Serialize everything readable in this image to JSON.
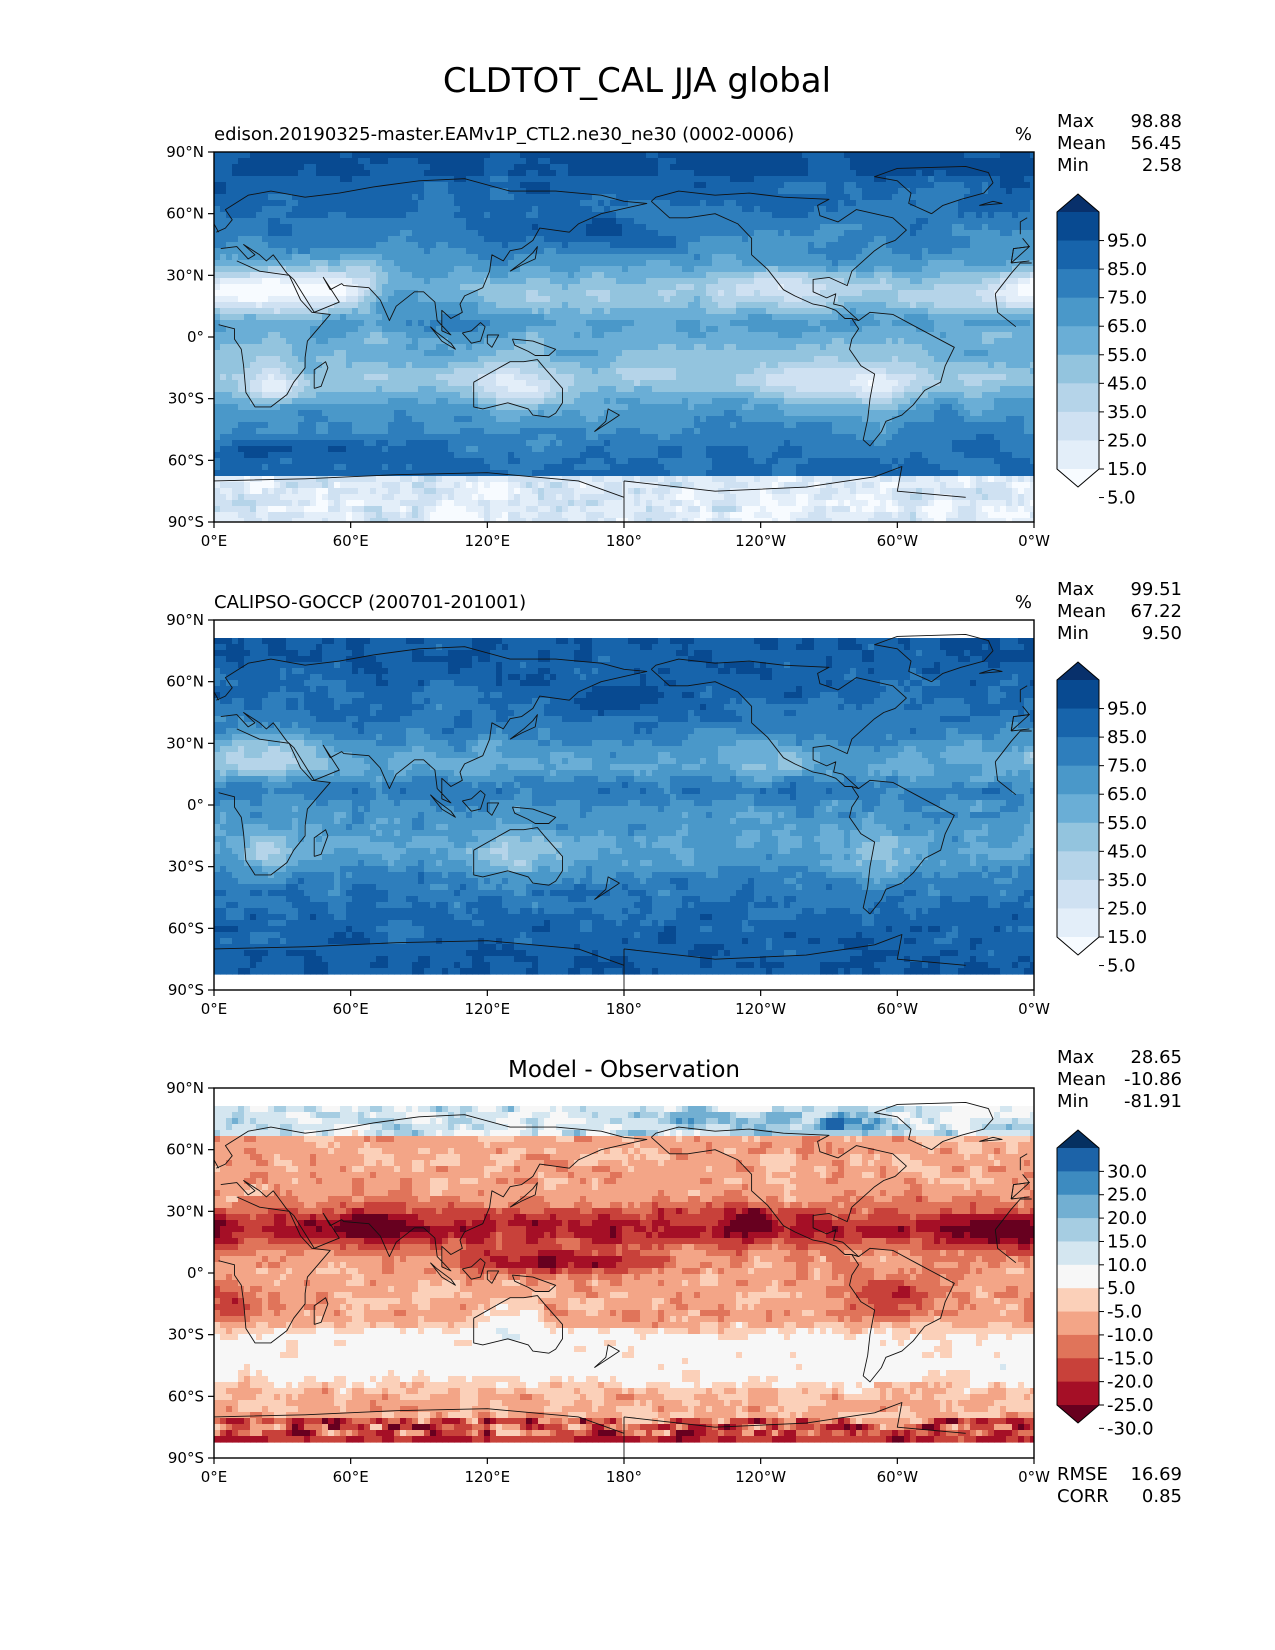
{
  "figure_title": "CLDTOT_CAL JJA global",
  "chart_data": [
    {
      "type": "heatmap",
      "title": "edison.20190325-master.EAMv1P_CTL2.ne30_ne30 (0002-0006)",
      "units": "%",
      "xlabel": "",
      "ylabel": "",
      "x_ticks": [
        "0°E",
        "60°E",
        "120°E",
        "180°",
        "120°W",
        "60°W",
        "0°W"
      ],
      "y_ticks": [
        "90°N",
        "60°N",
        "30°N",
        "0°",
        "30°S",
        "60°S",
        "90°S"
      ],
      "xlim": [
        0,
        360
      ],
      "ylim": [
        -90,
        90
      ],
      "stats": [
        {
          "label": "Max",
          "value": "98.88"
        },
        {
          "label": "Mean",
          "value": "56.45"
        },
        {
          "label": "Min",
          "value": "2.58"
        }
      ],
      "colorbar": {
        "levels": [
          0,
          10,
          20,
          30,
          40,
          50,
          60,
          70,
          80,
          90,
          100
        ],
        "tick_labels": [
          "95.0",
          "85.0",
          "75.0",
          "65.0",
          "55.0",
          "45.0",
          "35.0",
          "25.0",
          "15.0",
          "5.0"
        ],
        "colors": [
          "#f7fbff",
          "#e3eef9",
          "#cfe1f2",
          "#b5d4e9",
          "#93c4de",
          "#6aaed6",
          "#4a98c9",
          "#2e7ebc",
          "#1764ab",
          "#084a91",
          "#08306b"
        ]
      },
      "colormap": "Blues",
      "layout": "zonal_bands_high_latitudes_dark"
    },
    {
      "type": "heatmap",
      "title": "CALIPSO-GOCCP (200701-201001)",
      "units": "%",
      "xlabel": "",
      "ylabel": "",
      "x_ticks": [
        "0°E",
        "60°E",
        "120°E",
        "180°",
        "120°W",
        "60°W",
        "0°W"
      ],
      "y_ticks": [
        "90°N",
        "60°N",
        "30°N",
        "0°",
        "30°S",
        "60°S",
        "90°S"
      ],
      "xlim": [
        0,
        360
      ],
      "ylim": [
        -90,
        90
      ],
      "data_lat_range": [
        -82,
        82
      ],
      "stats": [
        {
          "label": "Max",
          "value": "99.51"
        },
        {
          "label": "Mean",
          "value": "67.22"
        },
        {
          "label": "Min",
          "value": "9.50"
        }
      ],
      "colorbar": {
        "levels": [
          0,
          10,
          20,
          30,
          40,
          50,
          60,
          70,
          80,
          90,
          100
        ],
        "tick_labels": [
          "95.0",
          "85.0",
          "75.0",
          "65.0",
          "55.0",
          "45.0",
          "35.0",
          "25.0",
          "15.0",
          "5.0"
        ],
        "colors": [
          "#f7fbff",
          "#e3eef9",
          "#cfe1f2",
          "#b5d4e9",
          "#93c4de",
          "#6aaed6",
          "#4a98c9",
          "#2e7ebc",
          "#1764ab",
          "#084a91",
          "#08306b"
        ]
      },
      "colormap": "Blues",
      "layout": "zonal_bands_higher_mean"
    },
    {
      "type": "heatmap",
      "title": "Model - Observation",
      "units": "",
      "xlabel": "",
      "ylabel": "",
      "x_ticks": [
        "0°E",
        "60°E",
        "120°E",
        "180°",
        "120°W",
        "60°W",
        "0°W"
      ],
      "y_ticks": [
        "90°N",
        "60°N",
        "30°N",
        "0°",
        "30°S",
        "60°S",
        "90°S"
      ],
      "xlim": [
        0,
        360
      ],
      "ylim": [
        -90,
        90
      ],
      "data_lat_range": [
        -82,
        82
      ],
      "stats": [
        {
          "label": "Max",
          "value": "28.65"
        },
        {
          "label": "Mean",
          "value": "-10.86"
        },
        {
          "label": "Min",
          "value": "-81.91"
        }
      ],
      "colorbar": {
        "levels": [
          -35,
          -30,
          -25,
          -20,
          -15,
          -10,
          -5,
          5,
          10,
          15,
          20,
          25,
          30,
          35
        ],
        "tick_labels": [
          "30.0",
          "25.0",
          "20.0",
          "15.0",
          "10.0",
          "5.0",
          "-5.0",
          "-10.0",
          "-15.0",
          "-20.0",
          "-25.0",
          "-30.0"
        ],
        "colors": [
          "#67001f",
          "#a50f26",
          "#c8413a",
          "#e0745a",
          "#f3a587",
          "#fbd0b9",
          "#f7f7f7",
          "#d4e6f0",
          "#a6cde2",
          "#72afd2",
          "#3d8bc0",
          "#1c63a8",
          "#053061"
        ]
      },
      "colormap": "RdBu",
      "layout": "difference_mostly_negative",
      "metrics": [
        {
          "label": "RMSE",
          "value": "16.69"
        },
        {
          "label": "CORR",
          "value": "0.85"
        }
      ]
    }
  ]
}
